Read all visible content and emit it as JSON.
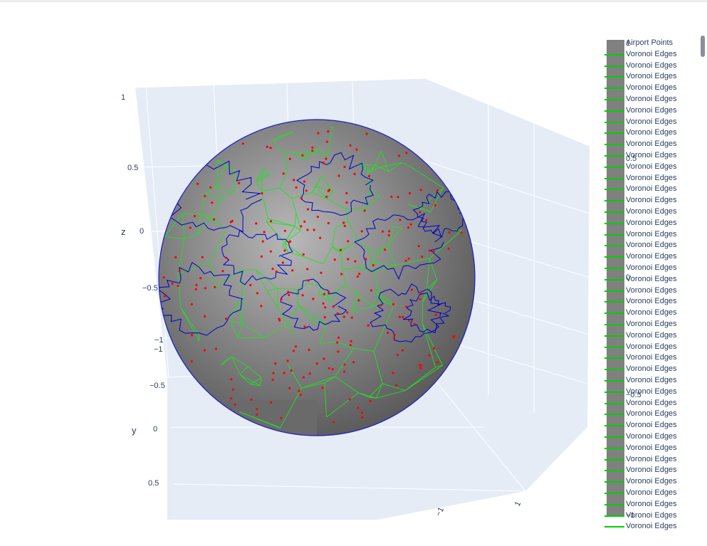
{
  "chart_data": {
    "type": "scatter",
    "title": "",
    "scene": {
      "axes": {
        "x": {
          "label": "",
          "ticks": [
            "−1",
            "−0.5",
            "0",
            "0.5",
            "1"
          ]
        },
        "y": {
          "label": "y",
          "ticks": [
            "−1",
            "−0.5",
            "0",
            "0.5"
          ]
        },
        "z": {
          "label": "z",
          "ticks": [
            "1",
            "0.5",
            "0",
            "−0.5",
            "−1"
          ]
        }
      },
      "background_color": "#e5ecf6",
      "grid": true
    },
    "series": [
      {
        "name": "Airport Points",
        "marker_color": "#ff0000",
        "count": 220
      },
      {
        "name": "Voronoi Edges",
        "line_color": "#00d000",
        "count": 42
      },
      {
        "name": "Coastlines",
        "line_color": "#0000cc"
      }
    ],
    "sphere_colorscale": [
      "#5a5a5a",
      "#b8b8b8"
    ],
    "colorbar": {
      "ticks": [
        "1",
        "0.5",
        "0",
        "−0.5",
        "−1"
      ]
    },
    "legend": {
      "placement": "right",
      "items": [
        "Airport Points",
        "Voronoi Edges",
        "Voronoi Edges",
        "Voronoi Edges",
        "Voronoi Edges",
        "Voronoi Edges",
        "Voronoi Edges",
        "Voronoi Edges",
        "Voronoi Edges",
        "Voronoi Edges",
        "Voronoi Edges",
        "Voronoi Edges",
        "Voronoi Edges",
        "Voronoi Edges",
        "Voronoi Edges",
        "Voronoi Edges",
        "Voronoi Edges",
        "Voronoi Edges",
        "Voronoi Edges",
        "Voronoi Edges",
        "Voronoi Edges",
        "Voronoi Edges",
        "Voronoi Edges",
        "Voronoi Edges",
        "Voronoi Edges",
        "Voronoi Edges",
        "Voronoi Edges",
        "Voronoi Edges",
        "Voronoi Edges",
        "Voronoi Edges",
        "Voronoi Edges",
        "Voronoi Edges",
        "Voronoi Edges",
        "Voronoi Edges",
        "Voronoi Edges",
        "Voronoi Edges",
        "Voronoi Edges",
        "Voronoi Edges",
        "Voronoi Edges",
        "Voronoi Edges",
        "Voronoi Edges",
        "Voronoi Edges",
        "Voronoi Edges",
        "Voronoi Edges"
      ]
    }
  }
}
